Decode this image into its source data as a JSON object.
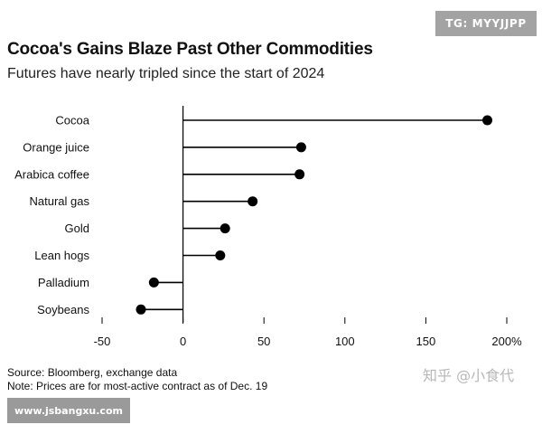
{
  "badge_top_right": "TG: MYYJJPP",
  "badge_bottom_left": "www.jsbangxu.com",
  "watermark_zh": "知乎 @小食代",
  "chart_data": {
    "type": "lollipop",
    "title": "Cocoa's Gains Blaze Past Other Commodities",
    "subtitle": "Futures have nearly tripled since the start of 2024",
    "categories": [
      "Cocoa",
      "Orange juice",
      "Arabica coffee",
      "Natural gas",
      "Gold",
      "Lean hogs",
      "Palladium",
      "Soybeans"
    ],
    "values": [
      188,
      73,
      72,
      43,
      26,
      23,
      -18,
      -26
    ],
    "xlim": [
      -50,
      200
    ],
    "xticks": [
      -50,
      0,
      50,
      100,
      150,
      200
    ],
    "xtick_labels": [
      "-50",
      "0",
      "50",
      "100",
      "150",
      "200%"
    ],
    "grid": false,
    "colors": {
      "marker": "#000000",
      "axis": "#000000"
    }
  },
  "footer": {
    "source": "Source: Bloomberg, exchange data",
    "note": "Note: Prices are for most-active contract as of Dec. 19"
  }
}
